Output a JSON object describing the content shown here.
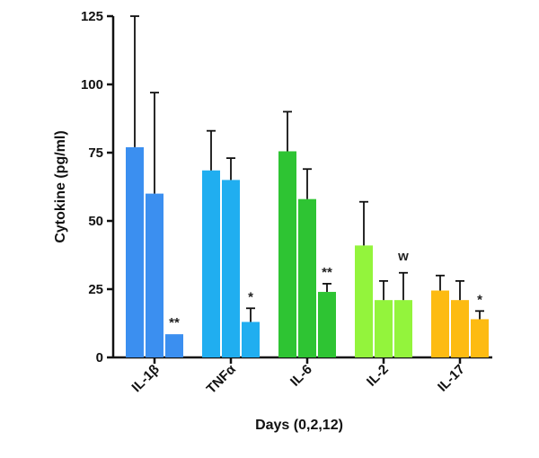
{
  "chart_data": {
    "type": "bar",
    "title": "",
    "xlabel": "Days (0,2,12)",
    "ylabel": "Cytokine (pg/ml)",
    "ylim": [
      0,
      125
    ],
    "yticks": [
      "0",
      "25",
      "50",
      "75",
      "100",
      "125"
    ],
    "grid": false,
    "legend": "none",
    "categories": [
      "IL-1β",
      "TNFα",
      "IL-6",
      "IL-2",
      "IL-17"
    ],
    "colors": [
      "#3b8ff0",
      "#20aef0",
      "#2ec433",
      "#93f43c",
      "#fdbb12"
    ],
    "series": [
      {
        "values": [
          77,
          68.5,
          75.5,
          41,
          24.5
        ],
        "err": [
          48,
          14.5,
          14.5,
          16,
          5.5
        ]
      },
      {
        "values": [
          60,
          65,
          58,
          21,
          21
        ],
        "err": [
          37,
          8,
          11,
          7,
          7
        ]
      },
      {
        "values": [
          8.5,
          13,
          24,
          21,
          14
        ],
        "err": [
          0,
          5,
          3,
          10,
          3
        ]
      }
    ],
    "significance": [
      {
        "category": 0,
        "series": 2,
        "label": "**"
      },
      {
        "category": 1,
        "series": 2,
        "label": "*"
      },
      {
        "category": 2,
        "series": 2,
        "label": "**"
      },
      {
        "category": 3,
        "series": 2,
        "label": "w"
      },
      {
        "category": 4,
        "series": 2,
        "label": "*"
      }
    ]
  }
}
